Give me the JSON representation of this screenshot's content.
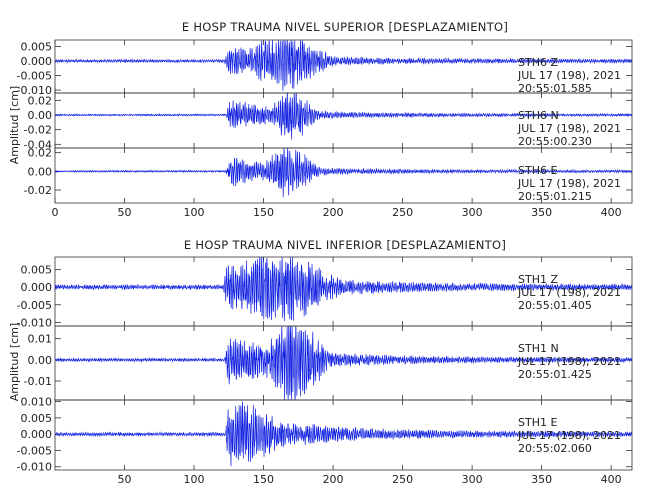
{
  "chart_data": [
    {
      "type": "line",
      "title": "E HOSP TRAUMA NIVEL SUPERIOR [DESPLAZAMIENTO]",
      "ylabel": "Amplitud [cm]",
      "xlim": [
        0,
        415
      ],
      "x_ticks": [
        0,
        50,
        100,
        150,
        200,
        250,
        300,
        350,
        400
      ],
      "x_tick_labels": [
        "0",
        "50",
        "100",
        "150",
        "200",
        "250",
        "300",
        "350",
        "400"
      ],
      "line_color": "#1020e0",
      "panels": [
        {
          "ylim": [
            -0.011,
            0.0072
          ],
          "y_ticks": [
            0.005,
            0.0,
            -0.005,
            -0.01
          ],
          "y_tick_labels": [
            "0.005",
            "0.000",
            "-0.005",
            "-0.010"
          ],
          "station": "STH6",
          "component": "Z",
          "date": "JUL 17 (198), 2021",
          "time": "20:55:01.585",
          "series": {
            "noise": 0.00045,
            "onset": 122,
            "peak": 0.009,
            "center": 165,
            "width": 26,
            "decay": 40
          }
        },
        {
          "ylim": [
            -0.045,
            0.03
          ],
          "y_ticks": [
            0.02,
            0.0,
            -0.02,
            -0.04
          ],
          "y_tick_labels": [
            "0.02",
            "0.00",
            "-0.02",
            "-0.04"
          ],
          "station": "STH6",
          "component": "N",
          "date": "JUL 17 (198), 2021",
          "time": "20:55:00.230",
          "series": {
            "noise": 0.0011,
            "onset": 123,
            "peak": 0.034,
            "center": 170,
            "width": 14,
            "decay": 35
          }
        },
        {
          "ylim": [
            -0.034,
            0.025
          ],
          "y_ticks": [
            0.02,
            0.0,
            -0.02
          ],
          "y_tick_labels": [
            "0.02",
            "0.00",
            "-0.02"
          ],
          "station": "STH6",
          "component": "E",
          "date": "JUL 17 (198), 2021",
          "time": "20:55:01.215",
          "series": {
            "noise": 0.0009,
            "onset": 123,
            "peak": 0.026,
            "center": 168,
            "width": 16,
            "decay": 35
          }
        }
      ]
    },
    {
      "type": "line",
      "title": "E HOSP TRAUMA NIVEL INFERIOR [DESPLAZAMIENTO]",
      "ylabel": "Amplitud [cm]",
      "xlim": [
        0,
        415
      ],
      "x_ticks": [
        50,
        100,
        150,
        200,
        250,
        300,
        350,
        400
      ],
      "x_tick_labels": [
        "50",
        "100",
        "150",
        "200",
        "250",
        "300",
        "350",
        "400"
      ],
      "line_color": "#1020e0",
      "panels": [
        {
          "ylim": [
            -0.011,
            0.0085
          ],
          "y_ticks": [
            0.005,
            0.0,
            -0.005,
            -0.01
          ],
          "y_tick_labels": [
            "0.005",
            "0.000",
            "-0.005",
            "-0.010"
          ],
          "station": "STH1",
          "component": "Z",
          "date": "JUL 17 (198), 2021",
          "time": "20:55:01.405",
          "series": {
            "noise": 0.0006,
            "onset": 121,
            "peak": 0.0095,
            "center": 160,
            "width": 35,
            "decay": 55
          }
        },
        {
          "ylim": [
            -0.019,
            0.016
          ],
          "y_ticks": [
            0.01,
            0.0,
            -0.01
          ],
          "y_tick_labels": [
            "0.01",
            "0.00",
            "-0.01"
          ],
          "station": "STH1",
          "component": "N",
          "date": "JUL 17 (198), 2021",
          "time": "20:55:01.425",
          "series": {
            "noise": 0.0007,
            "onset": 122,
            "peak": 0.0185,
            "center": 172,
            "width": 20,
            "decay": 45
          }
        },
        {
          "ylim": [
            -0.011,
            0.0105
          ],
          "y_ticks": [
            0.01,
            0.005,
            0.0,
            -0.005,
            -0.01
          ],
          "y_tick_labels": [
            "0.010",
            "0.005",
            "0.000",
            "-0.005",
            "-0.010"
          ],
          "station": "STH1",
          "component": "E",
          "date": "JUL 17 (198), 2021",
          "time": "20:55:02.060",
          "series": {
            "noise": 0.0005,
            "onset": 122,
            "peak": 0.0095,
            "center": 135,
            "width": 25,
            "decay": 60
          }
        }
      ]
    }
  ]
}
